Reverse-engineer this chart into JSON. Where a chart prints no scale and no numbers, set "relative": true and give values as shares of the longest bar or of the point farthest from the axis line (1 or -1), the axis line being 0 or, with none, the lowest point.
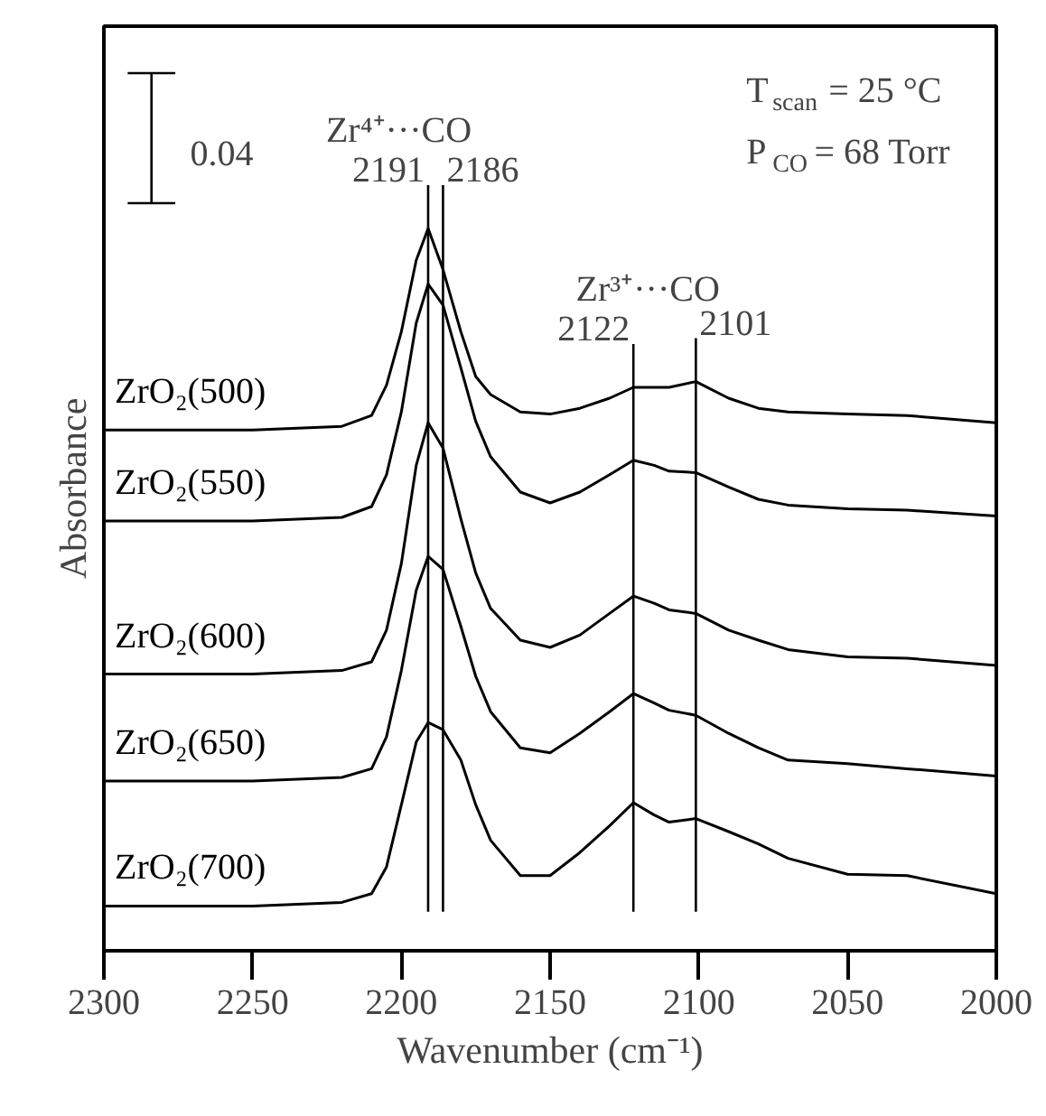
{
  "chart_data": {
    "type": "line",
    "relative": true,
    "xlabel": "Wavenumber (cm⁻¹)",
    "ylabel": "Absorbance",
    "xlim": [
      2300,
      2000
    ],
    "xticks": [
      2300,
      2250,
      2200,
      2150,
      2100,
      2050,
      2000
    ],
    "line_style": "solid",
    "x": [
      2300,
      2250,
      2220,
      2210,
      2205,
      2200,
      2195,
      2191,
      2186,
      2180,
      2175,
      2170,
      2160,
      2150,
      2140,
      2130,
      2122,
      2115,
      2110,
      2101,
      2090,
      2080,
      2070,
      2050,
      2030,
      2000
    ],
    "series": [
      {
        "name": "ZrO₂(500)",
        "color": "#000000",
        "values": [
          0.721,
          0.721,
          0.726,
          0.741,
          0.783,
          0.857,
          0.956,
          1.0,
          0.943,
          0.857,
          0.795,
          0.77,
          0.746,
          0.743,
          0.751,
          0.765,
          0.78,
          0.78,
          0.78,
          0.788,
          0.765,
          0.751,
          0.746,
          0.743,
          0.741,
          0.731
        ]
      },
      {
        "name": "ZrO₂(550)",
        "color": "#000000",
        "values": [
          0.595,
          0.595,
          0.6,
          0.615,
          0.659,
          0.746,
          0.869,
          0.923,
          0.894,
          0.807,
          0.733,
          0.684,
          0.635,
          0.62,
          0.635,
          0.659,
          0.679,
          0.672,
          0.664,
          0.662,
          0.642,
          0.625,
          0.617,
          0.612,
          0.61,
          0.602
        ]
      },
      {
        "name": "ZrO₂(600)",
        "color": "#000000",
        "values": [
          0.383,
          0.383,
          0.388,
          0.4,
          0.444,
          0.536,
          0.672,
          0.731,
          0.696,
          0.598,
          0.523,
          0.474,
          0.43,
          0.42,
          0.437,
          0.467,
          0.491,
          0.481,
          0.472,
          0.467,
          0.444,
          0.43,
          0.417,
          0.407,
          0.405,
          0.395
        ]
      },
      {
        "name": "ZrO₂(650)",
        "color": "#000000",
        "values": [
          0.235,
          0.235,
          0.24,
          0.252,
          0.296,
          0.388,
          0.499,
          0.546,
          0.528,
          0.449,
          0.38,
          0.331,
          0.281,
          0.274,
          0.301,
          0.331,
          0.356,
          0.343,
          0.333,
          0.326,
          0.301,
          0.281,
          0.264,
          0.259,
          0.252,
          0.242
        ]
      },
      {
        "name": "ZrO₂(700)",
        "color": "#000000",
        "values": [
          0.062,
          0.062,
          0.067,
          0.079,
          0.116,
          0.202,
          0.289,
          0.316,
          0.306,
          0.264,
          0.202,
          0.153,
          0.104,
          0.104,
          0.136,
          0.173,
          0.205,
          0.188,
          0.178,
          0.183,
          0.165,
          0.148,
          0.128,
          0.106,
          0.104,
          0.079
        ]
      }
    ],
    "ref_lines": [
      {
        "axis": "x",
        "value": 2191,
        "label": "2191",
        "color": "#000000"
      },
      {
        "axis": "x",
        "value": 2186,
        "label": "2186",
        "color": "#000000"
      },
      {
        "axis": "x",
        "value": 2122,
        "label": "2122",
        "color": "#000000"
      },
      {
        "axis": "x",
        "value": 2101,
        "label": "2101",
        "color": "#000000"
      }
    ],
    "annotations": [
      "0.04",
      "Zr⁴⁺···CO",
      "Zr³⁺···CO",
      "T$_{scan}$ = 25 °C",
      "P$_{CO}$ = 68 Torr"
    ]
  }
}
